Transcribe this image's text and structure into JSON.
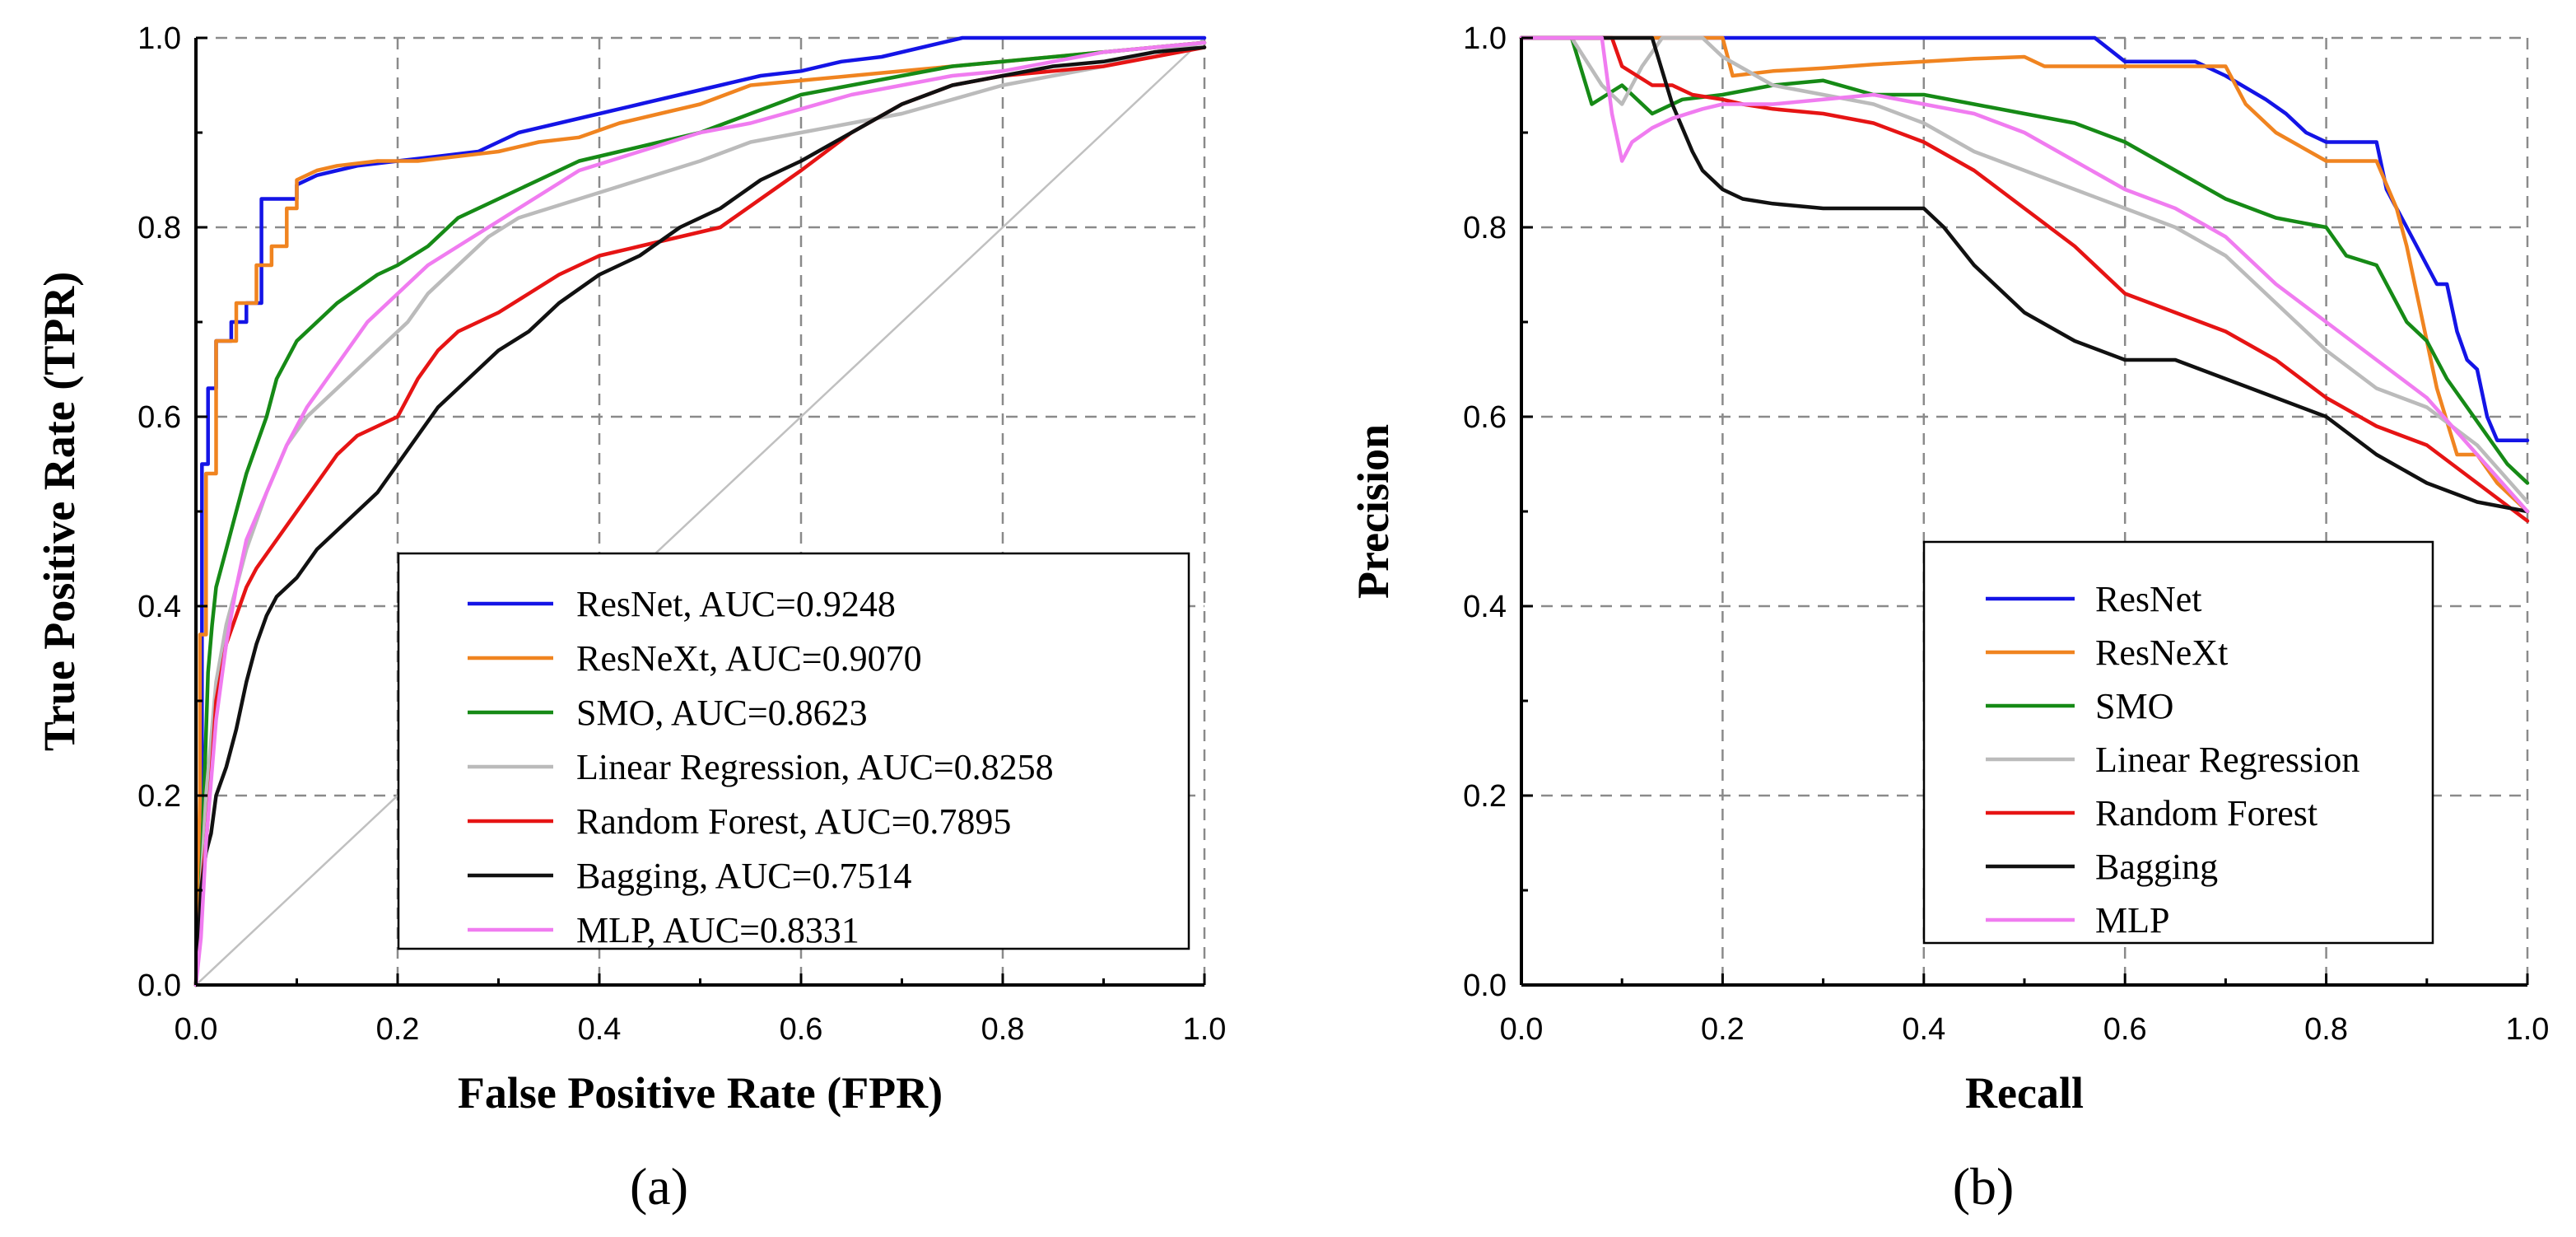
{
  "chart_data": [
    {
      "type": "line",
      "panel_label": "(a)",
      "title": "",
      "xlabel": "False Positive Rate (FPR)",
      "ylabel": "True Positive Rate (TPR)",
      "xlim": [
        0,
        1
      ],
      "ylim": [
        0,
        1
      ],
      "xticks": [
        "0.0",
        "0.2",
        "0.4",
        "0.6",
        "0.8",
        "1.0"
      ],
      "yticks": [
        "0.0",
        "0.2",
        "0.4",
        "0.6",
        "0.8",
        "1.0"
      ],
      "grid": true,
      "legend_position": "bottom-right",
      "reference_line": {
        "x": [
          0,
          1
        ],
        "y": [
          0,
          1
        ],
        "color": "#c0c0c0"
      },
      "series": [
        {
          "name": "ResNet, AUC=0.9248",
          "color": "#1414e6",
          "x": [
            0,
            0.003,
            0.006,
            0.006,
            0.012,
            0.012,
            0.02,
            0.02,
            0.035,
            0.035,
            0.05,
            0.05,
            0.065,
            0.065,
            0.1,
            0.1,
            0.12,
            0.14,
            0.16,
            0.2,
            0.24,
            0.28,
            0.32,
            0.36,
            0.4,
            0.44,
            0.48,
            0.52,
            0.56,
            0.6,
            0.64,
            0.68,
            0.72,
            0.76,
            0.8,
            0.9,
            1.0
          ],
          "y": [
            0,
            0.12,
            0.25,
            0.55,
            0.55,
            0.63,
            0.63,
            0.68,
            0.68,
            0.7,
            0.7,
            0.72,
            0.72,
            0.83,
            0.83,
            0.845,
            0.855,
            0.86,
            0.865,
            0.87,
            0.875,
            0.88,
            0.9,
            0.91,
            0.92,
            0.93,
            0.94,
            0.95,
            0.96,
            0.965,
            0.975,
            0.98,
            0.99,
            1.0,
            1.0,
            1.0,
            1.0
          ]
        },
        {
          "name": "ResNeXt, AUC=0.9070",
          "color": "#f08420",
          "x": [
            0,
            0.004,
            0.004,
            0.01,
            0.01,
            0.02,
            0.02,
            0.04,
            0.04,
            0.06,
            0.06,
            0.075,
            0.075,
            0.09,
            0.09,
            0.1,
            0.1,
            0.12,
            0.14,
            0.18,
            0.22,
            0.26,
            0.3,
            0.34,
            0.38,
            0.42,
            0.46,
            0.5,
            0.55,
            0.6,
            0.65,
            0.7,
            0.75,
            0.8,
            0.85,
            0.9,
            0.95,
            1.0
          ],
          "y": [
            0,
            0.2,
            0.37,
            0.37,
            0.54,
            0.54,
            0.68,
            0.68,
            0.72,
            0.72,
            0.76,
            0.76,
            0.78,
            0.78,
            0.82,
            0.82,
            0.85,
            0.86,
            0.865,
            0.87,
            0.87,
            0.875,
            0.88,
            0.89,
            0.895,
            0.91,
            0.92,
            0.93,
            0.95,
            0.955,
            0.96,
            0.965,
            0.97,
            0.975,
            0.98,
            0.985,
            0.99,
            0.995
          ]
        },
        {
          "name": "SMO, AUC=0.8623",
          "color": "#168a16",
          "x": [
            0,
            0.004,
            0.008,
            0.012,
            0.016,
            0.02,
            0.03,
            0.04,
            0.05,
            0.06,
            0.07,
            0.08,
            0.1,
            0.12,
            0.14,
            0.16,
            0.18,
            0.2,
            0.23,
            0.26,
            0.3,
            0.34,
            0.38,
            0.42,
            0.46,
            0.5,
            0.55,
            0.6,
            0.65,
            0.7,
            0.75,
            0.8,
            0.85,
            0.9,
            0.95,
            1.0
          ],
          "y": [
            0,
            0.08,
            0.2,
            0.33,
            0.38,
            0.42,
            0.46,
            0.5,
            0.54,
            0.57,
            0.6,
            0.64,
            0.68,
            0.7,
            0.72,
            0.735,
            0.75,
            0.76,
            0.78,
            0.81,
            0.83,
            0.85,
            0.87,
            0.88,
            0.89,
            0.9,
            0.92,
            0.94,
            0.95,
            0.96,
            0.97,
            0.975,
            0.98,
            0.985,
            0.99,
            0.995
          ]
        },
        {
          "name": "Linear Regression, AUC=0.8258",
          "color": "#bbbbbb",
          "x": [
            0,
            0.005,
            0.01,
            0.02,
            0.03,
            0.04,
            0.05,
            0.07,
            0.09,
            0.11,
            0.13,
            0.15,
            0.17,
            0.19,
            0.21,
            0.23,
            0.26,
            0.29,
            0.32,
            0.35,
            0.38,
            0.41,
            0.44,
            0.47,
            0.5,
            0.55,
            0.6,
            0.65,
            0.7,
            0.75,
            0.8,
            0.85,
            0.9,
            0.95,
            1.0
          ],
          "y": [
            0,
            0.1,
            0.2,
            0.32,
            0.38,
            0.42,
            0.46,
            0.52,
            0.57,
            0.6,
            0.62,
            0.64,
            0.66,
            0.68,
            0.7,
            0.73,
            0.76,
            0.79,
            0.81,
            0.82,
            0.83,
            0.84,
            0.85,
            0.86,
            0.87,
            0.89,
            0.9,
            0.91,
            0.92,
            0.935,
            0.95,
            0.96,
            0.97,
            0.985,
            0.995
          ]
        },
        {
          "name": "Random Forest, AUC=0.7895",
          "color": "#e61414",
          "x": [
            0,
            0.005,
            0.01,
            0.015,
            0.02,
            0.03,
            0.04,
            0.05,
            0.06,
            0.08,
            0.1,
            0.12,
            0.14,
            0.16,
            0.18,
            0.2,
            0.22,
            0.24,
            0.26,
            0.28,
            0.3,
            0.33,
            0.36,
            0.4,
            0.44,
            0.48,
            0.52,
            0.56,
            0.6,
            0.65,
            0.7,
            0.75,
            0.8,
            0.85,
            0.9,
            0.95,
            1.0
          ],
          "y": [
            0,
            0.1,
            0.15,
            0.22,
            0.3,
            0.36,
            0.39,
            0.42,
            0.44,
            0.47,
            0.5,
            0.53,
            0.56,
            0.58,
            0.59,
            0.6,
            0.64,
            0.67,
            0.69,
            0.7,
            0.71,
            0.73,
            0.75,
            0.77,
            0.78,
            0.79,
            0.8,
            0.83,
            0.86,
            0.9,
            0.93,
            0.95,
            0.96,
            0.965,
            0.97,
            0.98,
            0.99
          ]
        },
        {
          "name": "Bagging, AUC=0.7514",
          "color": "#111111",
          "x": [
            0,
            0.005,
            0.01,
            0.015,
            0.02,
            0.03,
            0.04,
            0.05,
            0.06,
            0.07,
            0.08,
            0.1,
            0.12,
            0.14,
            0.16,
            0.18,
            0.2,
            0.22,
            0.24,
            0.26,
            0.28,
            0.3,
            0.33,
            0.36,
            0.4,
            0.44,
            0.48,
            0.52,
            0.56,
            0.6,
            0.65,
            0.7,
            0.75,
            0.8,
            0.85,
            0.9,
            0.95,
            1.0
          ],
          "y": [
            0,
            0.1,
            0.14,
            0.16,
            0.2,
            0.23,
            0.27,
            0.32,
            0.36,
            0.39,
            0.41,
            0.43,
            0.46,
            0.48,
            0.5,
            0.52,
            0.55,
            0.58,
            0.61,
            0.63,
            0.65,
            0.67,
            0.69,
            0.72,
            0.75,
            0.77,
            0.8,
            0.82,
            0.85,
            0.87,
            0.9,
            0.93,
            0.95,
            0.96,
            0.97,
            0.975,
            0.985,
            0.99
          ]
        },
        {
          "name": "MLP, AUC=0.8331",
          "color": "#f07cf0",
          "x": [
            0,
            0.005,
            0.01,
            0.02,
            0.03,
            0.04,
            0.05,
            0.07,
            0.09,
            0.11,
            0.13,
            0.15,
            0.17,
            0.19,
            0.21,
            0.23,
            0.26,
            0.29,
            0.32,
            0.35,
            0.38,
            0.41,
            0.44,
            0.47,
            0.5,
            0.55,
            0.6,
            0.65,
            0.7,
            0.75,
            0.8,
            0.85,
            0.9,
            0.95,
            1.0
          ],
          "y": [
            0,
            0.05,
            0.15,
            0.28,
            0.36,
            0.42,
            0.47,
            0.52,
            0.57,
            0.61,
            0.64,
            0.67,
            0.7,
            0.72,
            0.74,
            0.76,
            0.78,
            0.8,
            0.82,
            0.84,
            0.86,
            0.87,
            0.88,
            0.89,
            0.9,
            0.91,
            0.925,
            0.94,
            0.95,
            0.96,
            0.965,
            0.975,
            0.985,
            0.99,
            0.995
          ]
        }
      ]
    },
    {
      "type": "line",
      "panel_label": "(b)",
      "title": "",
      "xlabel": "Recall",
      "ylabel": "Precision",
      "xlim": [
        0,
        1
      ],
      "ylim": [
        0,
        1
      ],
      "xticks": [
        "0.0",
        "0.2",
        "0.4",
        "0.6",
        "0.8",
        "1.0"
      ],
      "yticks": [
        "0.0",
        "0.2",
        "0.4",
        "0.6",
        "0.8",
        "1.0"
      ],
      "grid": true,
      "legend_position": "bottom-center",
      "series": [
        {
          "name": "ResNet",
          "color": "#1414e6",
          "x": [
            0,
            0.57,
            0.6,
            0.67,
            0.7,
            0.74,
            0.76,
            0.78,
            0.8,
            0.83,
            0.85,
            0.86,
            0.88,
            0.9,
            0.91,
            0.92,
            0.93,
            0.94,
            0.95,
            0.96,
            0.97,
            1.0
          ],
          "y": [
            1.0,
            1.0,
            0.975,
            0.975,
            0.96,
            0.935,
            0.92,
            0.9,
            0.89,
            0.89,
            0.89,
            0.84,
            0.8,
            0.76,
            0.74,
            0.74,
            0.69,
            0.66,
            0.65,
            0.6,
            0.575,
            0.575
          ]
        },
        {
          "name": "ResNeXt",
          "color": "#f08420",
          "x": [
            0,
            0.2,
            0.21,
            0.25,
            0.3,
            0.35,
            0.4,
            0.45,
            0.5,
            0.52,
            0.6,
            0.65,
            0.7,
            0.72,
            0.75,
            0.8,
            0.85,
            0.87,
            0.88,
            0.89,
            0.9,
            0.91,
            0.93,
            0.95,
            0.97,
            1.0
          ],
          "y": [
            1.0,
            1.0,
            0.96,
            0.965,
            0.968,
            0.972,
            0.975,
            0.978,
            0.98,
            0.97,
            0.97,
            0.97,
            0.97,
            0.93,
            0.9,
            0.87,
            0.87,
            0.82,
            0.78,
            0.73,
            0.68,
            0.63,
            0.56,
            0.56,
            0.53,
            0.5
          ]
        },
        {
          "name": "SMO",
          "color": "#168a16",
          "x": [
            0,
            0.05,
            0.07,
            0.1,
            0.13,
            0.16,
            0.2,
            0.25,
            0.3,
            0.35,
            0.4,
            0.45,
            0.5,
            0.55,
            0.6,
            0.65,
            0.7,
            0.75,
            0.8,
            0.82,
            0.85,
            0.88,
            0.9,
            0.92,
            0.94,
            0.96,
            0.98,
            1.0
          ],
          "y": [
            1.0,
            1.0,
            0.93,
            0.95,
            0.92,
            0.935,
            0.94,
            0.95,
            0.955,
            0.94,
            0.94,
            0.93,
            0.92,
            0.91,
            0.89,
            0.86,
            0.83,
            0.81,
            0.8,
            0.77,
            0.76,
            0.7,
            0.68,
            0.64,
            0.61,
            0.58,
            0.55,
            0.53
          ]
        },
        {
          "name": "Linear Regression",
          "color": "#bbbbbb",
          "x": [
            0,
            0.05,
            0.08,
            0.1,
            0.12,
            0.14,
            0.16,
            0.18,
            0.2,
            0.25,
            0.3,
            0.35,
            0.4,
            0.45,
            0.5,
            0.55,
            0.6,
            0.65,
            0.7,
            0.75,
            0.8,
            0.85,
            0.9,
            0.95,
            1.0
          ],
          "y": [
            1.0,
            1.0,
            0.95,
            0.93,
            0.97,
            1.0,
            1.0,
            1.0,
            0.98,
            0.95,
            0.94,
            0.93,
            0.91,
            0.88,
            0.86,
            0.84,
            0.82,
            0.8,
            0.77,
            0.72,
            0.67,
            0.63,
            0.61,
            0.57,
            0.51
          ]
        },
        {
          "name": "Random Forest",
          "color": "#e61414",
          "x": [
            0,
            0.09,
            0.1,
            0.13,
            0.15,
            0.17,
            0.2,
            0.22,
            0.25,
            0.3,
            0.35,
            0.4,
            0.45,
            0.5,
            0.55,
            0.6,
            0.65,
            0.7,
            0.75,
            0.8,
            0.85,
            0.9,
            0.95,
            1.0
          ],
          "y": [
            1.0,
            1.0,
            0.97,
            0.95,
            0.95,
            0.94,
            0.935,
            0.93,
            0.925,
            0.92,
            0.91,
            0.89,
            0.86,
            0.82,
            0.78,
            0.73,
            0.71,
            0.69,
            0.66,
            0.62,
            0.59,
            0.57,
            0.53,
            0.49
          ]
        },
        {
          "name": "Bagging",
          "color": "#111111",
          "x": [
            0,
            0.13,
            0.15,
            0.17,
            0.18,
            0.19,
            0.2,
            0.22,
            0.25,
            0.3,
            0.35,
            0.4,
            0.42,
            0.45,
            0.5,
            0.55,
            0.6,
            0.65,
            0.7,
            0.75,
            0.8,
            0.85,
            0.9,
            0.95,
            1.0
          ],
          "y": [
            1.0,
            1.0,
            0.93,
            0.88,
            0.86,
            0.85,
            0.84,
            0.83,
            0.825,
            0.82,
            0.82,
            0.82,
            0.8,
            0.76,
            0.71,
            0.68,
            0.66,
            0.66,
            0.64,
            0.62,
            0.6,
            0.56,
            0.53,
            0.51,
            0.5
          ]
        },
        {
          "name": "MLP",
          "color": "#f07cf0",
          "x": [
            0,
            0.08,
            0.09,
            0.1,
            0.11,
            0.13,
            0.15,
            0.18,
            0.2,
            0.25,
            0.3,
            0.35,
            0.4,
            0.45,
            0.5,
            0.55,
            0.6,
            0.65,
            0.7,
            0.75,
            0.8,
            0.85,
            0.9,
            0.95,
            1.0
          ],
          "y": [
            1.0,
            1.0,
            0.92,
            0.87,
            0.89,
            0.905,
            0.915,
            0.925,
            0.93,
            0.93,
            0.935,
            0.94,
            0.93,
            0.92,
            0.9,
            0.87,
            0.84,
            0.82,
            0.79,
            0.74,
            0.7,
            0.66,
            0.62,
            0.56,
            0.5
          ]
        }
      ]
    }
  ]
}
